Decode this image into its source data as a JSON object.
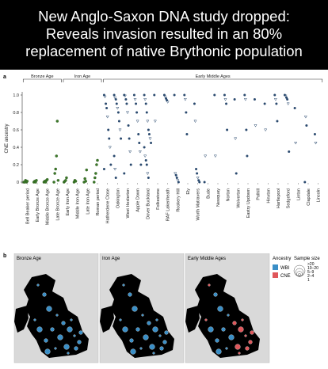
{
  "banner": {
    "line1": "New Anglo-Saxon DNA study dropped:",
    "line2": "Reveals invasion resulted in an 80%",
    "line3": "replacement of native Brythonic population"
  },
  "panel_a": {
    "label": "a",
    "periods": [
      "Bronze Age",
      "Iron Age",
      "Early Middle Ages"
    ]
  },
  "panel_b": {
    "label": "b",
    "maps": [
      "Bronze Age",
      "Iron Age",
      "Early Middle Ages"
    ],
    "legend": {
      "ancestry_title": "Ancestry",
      "ancestry_items": [
        {
          "label": "WBI",
          "color": "#3a8fc7"
        },
        {
          "label": "CNE",
          "color": "#e0575b"
        }
      ],
      "size_title": "Sample size",
      "size_items": [
        ">20",
        "10–20",
        "5–9",
        "2–4",
        "1"
      ]
    }
  },
  "chart_data": {
    "type": "scatter",
    "ylabel": "CNE ancestry",
    "ylim": [
      0,
      1
    ],
    "yticks": [
      "0",
      "0.2",
      "0.4",
      "0.6",
      "0.8",
      "1.0"
    ],
    "categories": [
      "Bell Beaker period",
      "Early Bronze Age",
      "Middle Bronze Age",
      "Late Bronze Age",
      "Early Iron Age",
      "Middle Iron Age",
      "Late Iron Age",
      "Roman period",
      "Hatherdene Close",
      "Oakington",
      "West Heslerton",
      "Apple Down",
      "Dover Buckland",
      "Folkestone",
      "RAF Lakenheath",
      "Rookery Hill",
      "Ely",
      "Worth Matravers",
      "Bude",
      "Newquay",
      "Norton",
      "Wolverton",
      "Eastry Updown",
      "Polhill",
      "Hinxton",
      "Hartlepool",
      "Sedgeford",
      "Linton",
      "Clapdale",
      "Lincoln"
    ],
    "series": [
      {
        "category": "Bell Beaker period",
        "values": [
          0,
          0,
          0.02,
          0,
          0.01
        ]
      },
      {
        "category": "Early Bronze Age",
        "values": [
          0,
          0.01,
          0,
          0.02
        ]
      },
      {
        "category": "Middle Bronze Age",
        "values": [
          0,
          0.01,
          0,
          0.02,
          0.03
        ]
      },
      {
        "category": "Late Bronze Age",
        "values": [
          0,
          0.1,
          0.15,
          0.3,
          0.7,
          0.02
        ]
      },
      {
        "category": "Early Iron Age",
        "values": [
          0,
          0.01,
          0.02,
          0.05
        ]
      },
      {
        "category": "Middle Iron Age",
        "values": [
          0,
          0.02,
          0.01
        ]
      },
      {
        "category": "Late Iron Age",
        "values": [
          0,
          0.04,
          0.01,
          0.14
        ]
      },
      {
        "category": "Roman period",
        "values": [
          0,
          0.05,
          0.1,
          0.2,
          0.25
        ]
      },
      {
        "category": "Hatherdene Close",
        "values": [
          1,
          0.98,
          0.9,
          0.85,
          0.75,
          0.6,
          0.5,
          0.4,
          0.2,
          0.15
        ]
      },
      {
        "category": "Oakington",
        "values": [
          1,
          0.97,
          0.95,
          0.9,
          0.85,
          0.8,
          0.7,
          0.6,
          0.5,
          0.3,
          0.15,
          0.05
        ]
      },
      {
        "category": "West Heslerton",
        "values": [
          1,
          0.99,
          0.95,
          0.9,
          0.8,
          0.65,
          0.5,
          0.35,
          0.2,
          0.1
        ]
      },
      {
        "category": "Apple Down",
        "values": [
          1,
          0.95,
          0.9,
          0.8,
          0.7,
          0.55,
          0.45,
          0.35,
          0.2
        ]
      },
      {
        "category": "Dover Buckland",
        "values": [
          1,
          0.95,
          0.9,
          0.8,
          0.7,
          0.6,
          0.55,
          0.5,
          0.45,
          0.4,
          0.3,
          0.25,
          0.2,
          0.1,
          0.05
        ]
      },
      {
        "category": "Folkestone",
        "values": [
          1,
          0.7
        ]
      },
      {
        "category": "RAF Lakenheath",
        "values": [
          1,
          0.98,
          0.96,
          0.94,
          0.92
        ]
      },
      {
        "category": "Rookery Hill",
        "values": [
          1,
          0.1,
          0.08,
          0.05,
          0.02,
          0
        ]
      },
      {
        "category": "Ely",
        "values": [
          1,
          0.95,
          0.8,
          0.55
        ]
      },
      {
        "category": "Worth Matravers",
        "values": [
          0.9,
          0.7,
          0.15,
          0.1,
          0.05,
          0.02,
          0
        ]
      },
      {
        "category": "Bude",
        "values": [
          0,
          0.3
        ]
      },
      {
        "category": "Newquay",
        "values": [
          1,
          0.3
        ]
      },
      {
        "category": "Norton",
        "values": [
          1,
          0.95,
          0.9,
          0.6
        ]
      },
      {
        "category": "Wolverton",
        "values": [
          0.95,
          0.5,
          0.1
        ]
      },
      {
        "category": "Eastry Updown",
        "values": [
          1,
          0.95,
          0.6,
          0.3
        ]
      },
      {
        "category": "Polhill",
        "values": [
          0.95,
          0.65
        ]
      },
      {
        "category": "Hinxton",
        "values": [
          0.9,
          0.6
        ]
      },
      {
        "category": "Hartlepool",
        "values": [
          1,
          0.95,
          0.9,
          0.7
        ]
      },
      {
        "category": "Sedgeford",
        "values": [
          1,
          0.99,
          0.97,
          0.95,
          0.9,
          0.35
        ]
      },
      {
        "category": "Linton",
        "values": [
          0.85,
          0.45
        ]
      },
      {
        "category": "Clapdale",
        "values": [
          0,
          0.75,
          0.65
        ]
      },
      {
        "category": "Lincoln",
        "values": [
          0.55,
          0.45
        ]
      }
    ]
  }
}
